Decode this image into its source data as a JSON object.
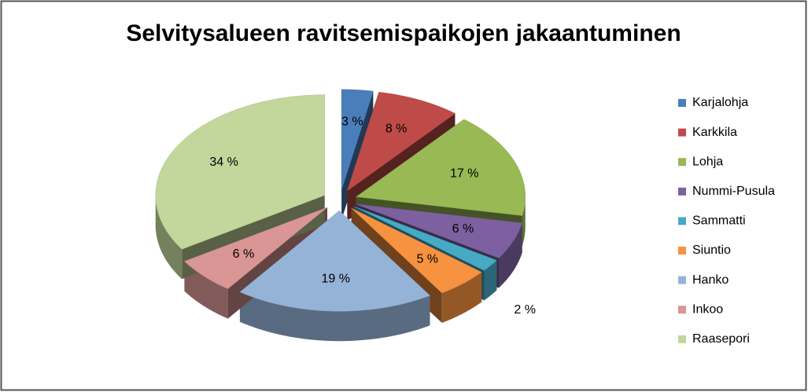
{
  "chart_data": {
    "type": "pie",
    "title": "Selvitysalueen ravitsemispaikojen jakaantuminen",
    "categories": [
      "Karjalohja",
      "Karkkila",
      "Lohja",
      "Nummi-Pusula",
      "Sammatti",
      "Siuntio",
      "Hanko",
      "Inkoo",
      "Raasepori"
    ],
    "values": [
      3,
      8,
      17,
      6,
      2,
      5,
      19,
      6,
      34
    ],
    "value_labels": [
      "3 %",
      "8 %",
      "17 %",
      "6 %",
      "2 %",
      "5 %",
      "19 %",
      "6 %",
      "34 %"
    ],
    "colors": [
      "#4a7ebb",
      "#be4b48",
      "#98b954",
      "#7d60a0",
      "#46aac5",
      "#f69240",
      "#95b3d7",
      "#d99694",
      "#c3d69b"
    ],
    "legend": "right"
  }
}
